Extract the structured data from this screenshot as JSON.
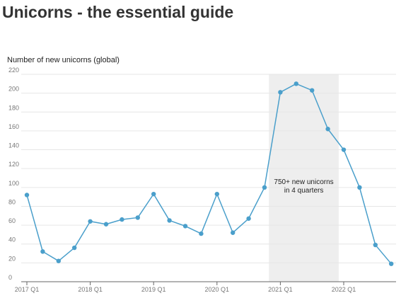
{
  "page": {
    "title": "Unicorns - the essential guide"
  },
  "colors": {
    "line": "#4a9fcb",
    "grid": "#e6e6e6",
    "axis": "#666666",
    "highlight": "#eeeeee"
  },
  "chart_data": {
    "type": "line",
    "title": "",
    "ylabel": "Number of new unicorns (global)",
    "xlabel": "",
    "ylim": [
      0,
      220
    ],
    "yticks": [
      0,
      20,
      40,
      60,
      80,
      100,
      120,
      140,
      160,
      180,
      200,
      220
    ],
    "xticks": [
      "2017 Q1",
      "2018 Q1",
      "2019 Q1",
      "2020 Q1",
      "2021 Q1",
      "2022 Q1"
    ],
    "x": [
      "2017 Q1",
      "2017 Q2",
      "2017 Q3",
      "2017 Q4",
      "2018 Q1",
      "2018 Q2",
      "2018 Q3",
      "2018 Q4",
      "2019 Q1",
      "2019 Q2",
      "2019 Q3",
      "2019 Q4",
      "2020 Q1",
      "2020 Q2",
      "2020 Q3",
      "2020 Q4",
      "2021 Q1",
      "2021 Q2",
      "2021 Q3",
      "2021 Q4",
      "2022 Q1",
      "2022 Q2",
      "2022 Q3",
      "2022 Q4"
    ],
    "series": [
      {
        "values": [
          92,
          32,
          22,
          36,
          64,
          61,
          66,
          68,
          93,
          65,
          59,
          51,
          93,
          52,
          67,
          100,
          201,
          210,
          203,
          162,
          140,
          100,
          39,
          19
        ]
      }
    ],
    "highlight": {
      "from": "2021 Q1",
      "to": "2021 Q4",
      "label_lines": [
        "750+ new unicorns",
        "in 4 quarters"
      ]
    },
    "grid": true
  }
}
